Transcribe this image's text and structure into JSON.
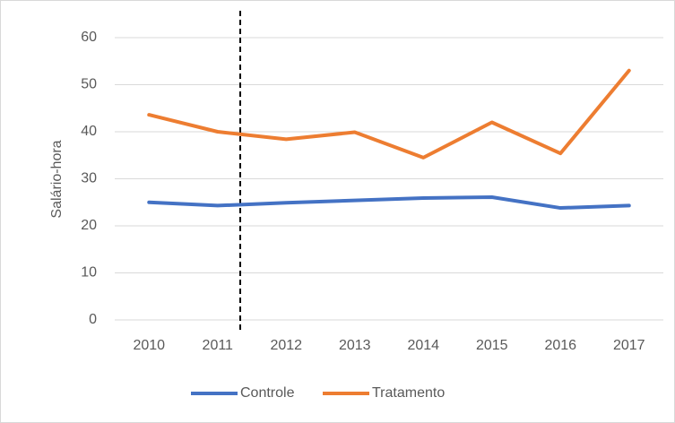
{
  "chart_data": {
    "type": "line",
    "ylabel": "Salário-hora",
    "categories": [
      "2010",
      "2011",
      "2012",
      "2013",
      "2014",
      "2015",
      "2016",
      "2017"
    ],
    "series": [
      {
        "name": "Controle",
        "color": "#4472c4",
        "values": [
          25,
          24.3,
          24.9,
          25.4,
          25.9,
          26.1,
          23.8,
          24.3
        ]
      },
      {
        "name": "Tratamento",
        "color": "#ed7d31",
        "values": [
          43.6,
          40,
          38.4,
          39.9,
          34.5,
          42,
          35.4,
          53
        ]
      }
    ],
    "ylim": [
      0,
      60
    ],
    "yticks": [
      0,
      10,
      20,
      30,
      40,
      50,
      60
    ],
    "grid": true,
    "legend": "bottom"
  }
}
